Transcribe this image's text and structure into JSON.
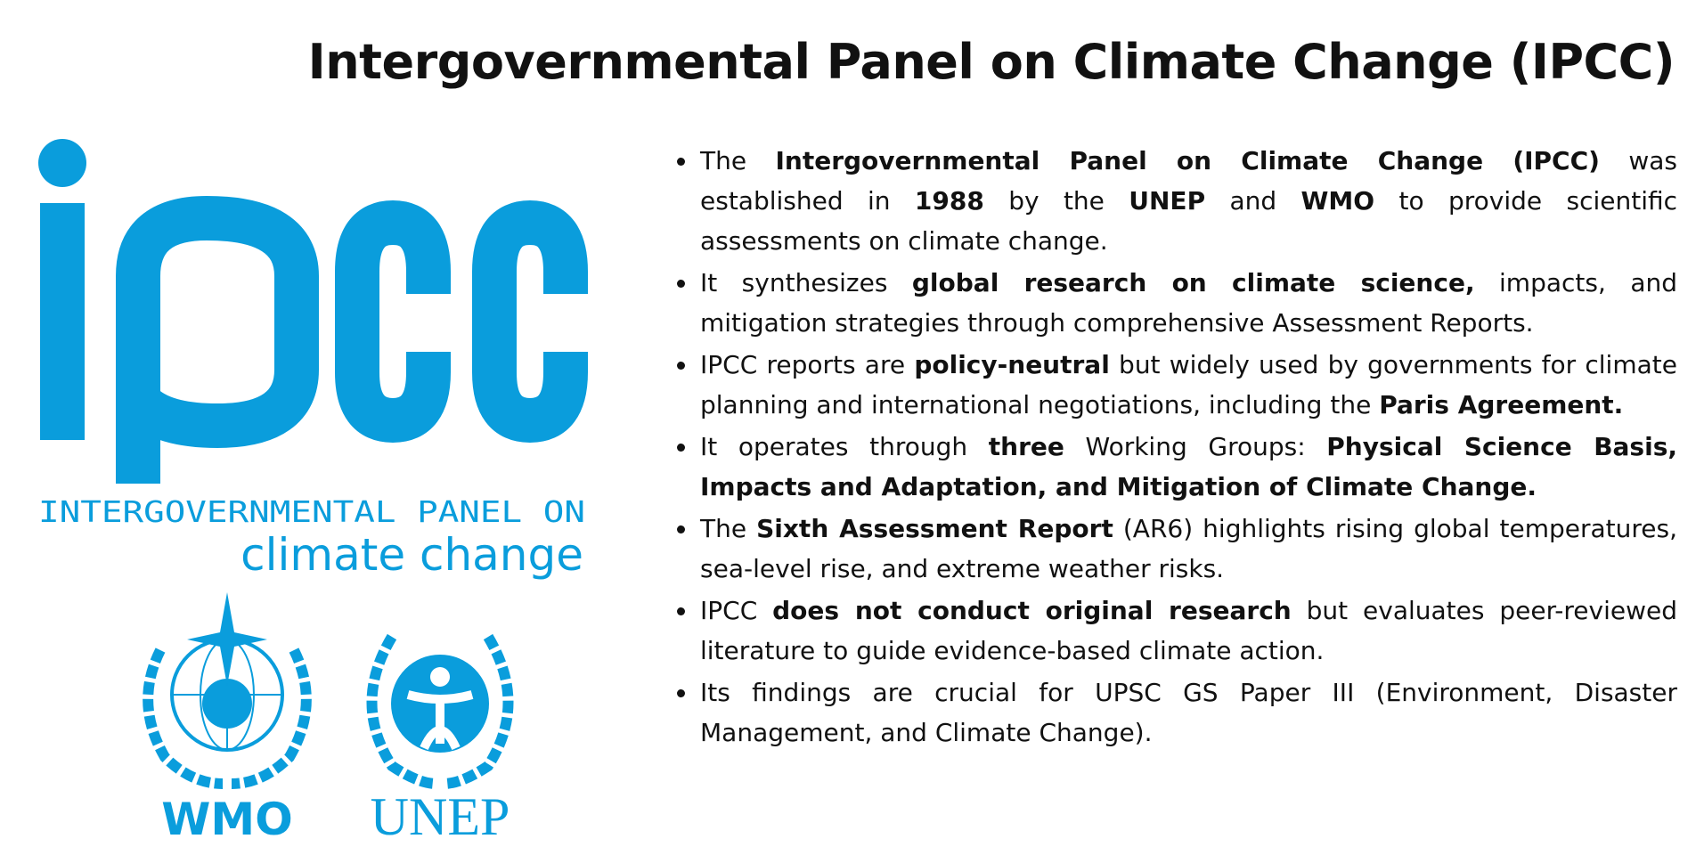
{
  "header": {
    "title": "Intergovernmental Panel on Climate Change (IPCC)"
  },
  "logo": {
    "name": "ipcc",
    "subtitle": "INTERGOVERNMENTAL PANEL ON",
    "tagline": "climate change",
    "partners": [
      "WMO",
      "UNEP"
    ]
  },
  "bullets": [
    [
      {
        "text": "The "
      },
      {
        "text": "Intergovernmental Panel on Climate Change (IPCC)",
        "bold": true
      },
      {
        "text": " was established in "
      },
      {
        "text": "1988",
        "bold": true
      },
      {
        "text": " by the "
      },
      {
        "text": "UNEP",
        "bold": true
      },
      {
        "text": " and "
      },
      {
        "text": "WMO",
        "bold": true
      },
      {
        "text": " to provide scientific assessments on climate change."
      }
    ],
    [
      {
        "text": "It synthesizes "
      },
      {
        "text": "global research on climate science,",
        "bold": true
      },
      {
        "text": " impacts, and mitigation strategies through comprehensive Assessment Reports."
      }
    ],
    [
      {
        "text": "IPCC reports are "
      },
      {
        "text": "policy-neutral",
        "bold": true
      },
      {
        "text": " but widely used by governments for climate planning and international negotiations, including the "
      },
      {
        "text": "Paris Agreement.",
        "bold": true
      }
    ],
    [
      {
        "text": "It operates through "
      },
      {
        "text": "three",
        "bold": true
      },
      {
        "text": " Working Groups: "
      },
      {
        "text": "Physical Science Basis, Impacts and Adaptation, and Mitigation of Climate Change.",
        "bold": true
      }
    ],
    [
      {
        "text": "The "
      },
      {
        "text": "Sixth Assessment Report",
        "bold": true
      },
      {
        "text": " (AR6) highlights rising global temperatures, sea-level rise, and extreme weather risks."
      }
    ],
    [
      {
        "text": "IPCC "
      },
      {
        "text": "does not conduct original research",
        "bold": true
      },
      {
        "text": " but evaluates peer-reviewed literature to guide evidence-based climate action."
      }
    ],
    [
      {
        "text": "Its findings are crucial for UPSC GS Paper III (Environment, Disaster Management, and Climate Change)."
      }
    ]
  ]
}
